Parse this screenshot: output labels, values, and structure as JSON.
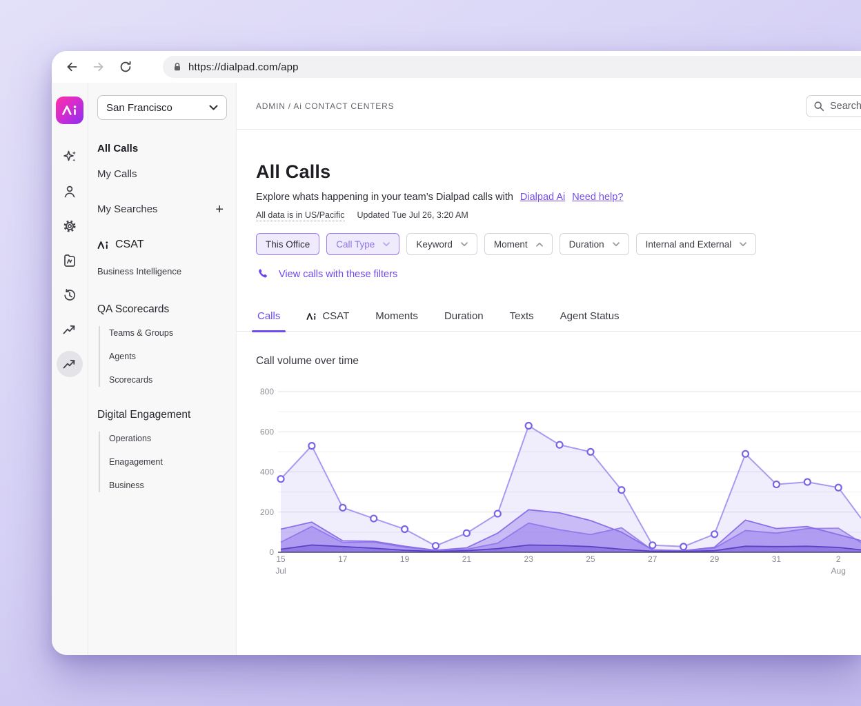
{
  "browser": {
    "url": "https://dialpad.com/app"
  },
  "rail": {
    "icons": [
      "dialpad-logo",
      "ai-sparkles",
      "contacts",
      "settings",
      "ai-collection",
      "history",
      "trending-up",
      "trending-up-selected"
    ]
  },
  "org_selector": {
    "value": "San Francisco"
  },
  "header": {
    "breadcrumb": "ADMIN / Ai CONTACT CENTERS",
    "search_placeholder": "Search"
  },
  "nav": {
    "all_calls": "All Calls",
    "my_calls": "My Calls",
    "my_searches": "My Searches",
    "add_search": "+",
    "csat": "CSAT",
    "business_intelligence": "Business Intelligence",
    "qa_scorecards": {
      "title": "QA Scorecards",
      "items": [
        "Teams & Groups",
        "Agents",
        "Scorecards"
      ]
    },
    "digital_engagement": {
      "title": "Digital Engagement",
      "items": [
        "Operations",
        "Enagagement",
        "Business"
      ]
    }
  },
  "page": {
    "title": "All Calls",
    "description": "Explore whats happening in your team’s Dialpad calls with",
    "link_dialpad_ai": "Dialpad Ai",
    "link_need_help": "Need help?",
    "timezone_note": "All data is in US/Pacific",
    "updated": "Updated Tue Jul 26, 3:20 AM",
    "view_calls_link": "View calls with these filters"
  },
  "filters": {
    "chips": [
      {
        "label": "This Office",
        "state": "active",
        "chevron": "none"
      },
      {
        "label": "Call Type",
        "state": "active-muted",
        "chevron": "down"
      },
      {
        "label": "Keyword",
        "state": "default",
        "chevron": "down"
      },
      {
        "label": "Moment",
        "state": "default",
        "chevron": "up"
      },
      {
        "label": "Duration",
        "state": "default",
        "chevron": "down"
      },
      {
        "label": "Internal and External",
        "state": "default",
        "chevron": "down"
      }
    ]
  },
  "tabs": [
    {
      "label": "Calls",
      "active": true
    },
    {
      "label": "CSAT",
      "icon": "dialpad-ai"
    },
    {
      "label": "Moments"
    },
    {
      "label": "Duration"
    },
    {
      "label": "Texts"
    },
    {
      "label": "Agent Status"
    }
  ],
  "chart_data": {
    "type": "area",
    "title": "Call volume over time",
    "x_labels": [
      "Jul 15",
      "Jul 16",
      "Jul 17",
      "Jul 18",
      "Jul 19",
      "Jul 20",
      "Jul 21",
      "Jul 22",
      "Jul 23",
      "Jul 24",
      "Jul 25",
      "Jul 26",
      "Jul 27",
      "Jul 28",
      "Jul 29",
      "Jul 30",
      "Jul 31",
      "Aug 1",
      "Aug 2"
    ],
    "x_ticks": [
      {
        "pos": 0,
        "label": "15",
        "sub": "Jul"
      },
      {
        "pos": 2,
        "label": "17"
      },
      {
        "pos": 4,
        "label": "19"
      },
      {
        "pos": 6,
        "label": "21"
      },
      {
        "pos": 8,
        "label": "23"
      },
      {
        "pos": 10,
        "label": "25"
      },
      {
        "pos": 12,
        "label": "27"
      },
      {
        "pos": 14,
        "label": "29"
      },
      {
        "pos": 16,
        "label": "31"
      },
      {
        "pos": 18,
        "label": "2",
        "sub": "Aug"
      }
    ],
    "ylim": [
      0,
      800
    ],
    "y_ticks": [
      0,
      200,
      400,
      600,
      800
    ],
    "y_minor": [
      100,
      300,
      500,
      700
    ],
    "grid": true,
    "legend": "none",
    "series": [
      {
        "name": "total-call-volume",
        "color": "#a79af0",
        "fill": "rgba(141,123,238,0.13)",
        "line_width": 2,
        "markers": true,
        "values": [
          365,
          530,
          222,
          168,
          115,
          32,
          95,
          192,
          630,
          535,
          500,
          310,
          35,
          28,
          90,
          490,
          338,
          350,
          322
        ],
        "edge_value": 170
      },
      {
        "name": "series-2",
        "color": "#8b6fe9",
        "fill": "rgba(136,108,233,0.38)",
        "line_width": 1.8,
        "markers": false,
        "values": [
          115,
          150,
          57,
          55,
          30,
          10,
          22,
          95,
          212,
          196,
          158,
          100,
          12,
          8,
          25,
          160,
          118,
          128,
          88
        ],
        "edge_value": 58
      },
      {
        "name": "series-3",
        "color": "#9a82ec",
        "fill": "rgba(136,108,233,0.38)",
        "line_width": 1.8,
        "markers": false,
        "values": [
          50,
          128,
          48,
          50,
          25,
          8,
          15,
          45,
          145,
          112,
          88,
          122,
          10,
          6,
          20,
          108,
          95,
          118,
          120
        ],
        "edge_value": 48
      },
      {
        "name": "series-4",
        "color": "#5a41c8",
        "fill": "rgba(98,72,205,0.42)",
        "line_width": 1.8,
        "markers": false,
        "values": [
          15,
          36,
          28,
          20,
          10,
          4,
          8,
          18,
          36,
          34,
          28,
          15,
          5,
          4,
          8,
          30,
          28,
          30,
          24
        ],
        "edge_value": 12
      }
    ],
    "marker_style": {
      "fill": "#ffffff",
      "stroke": "#7a64e6"
    },
    "axis_color": "#4d4370",
    "grid_color": "#e2e2e7",
    "tick_color": "#8d8d96"
  }
}
